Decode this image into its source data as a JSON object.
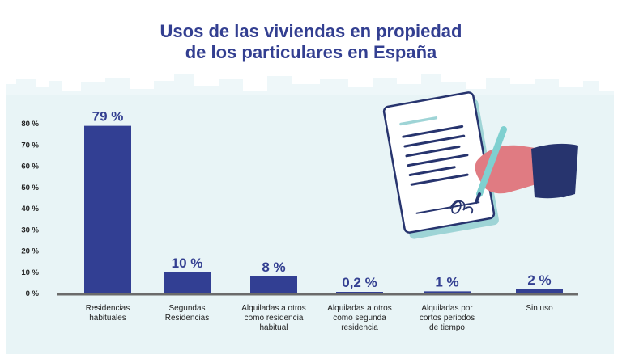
{
  "title_line1": "Usos de las viviendas en propiedad",
  "title_line2": "de los particulares en España",
  "colors": {
    "bar": "#323f93",
    "panel": "#e8f4f6",
    "skyline": "#eef7f9",
    "title": "#333f91",
    "baseline": "#6b6b6b"
  },
  "icons": [
    "document-contract-icon",
    "hand-signing-icon",
    "pen-icon"
  ],
  "chart_data": {
    "type": "bar",
    "title": "Usos de las viviendas en propiedad de los particulares en España",
    "ylim": [
      0,
      80
    ],
    "yticks": [
      0,
      10,
      20,
      30,
      40,
      50,
      60,
      70,
      80
    ],
    "ytick_labels": [
      "0 %",
      "10 %",
      "20 %",
      "30 %",
      "40 %",
      "50 %",
      "60 %",
      "70 %",
      "80 %"
    ],
    "categories": [
      [
        "Residencias",
        "habituales"
      ],
      [
        "Segundas",
        "Residencias"
      ],
      [
        "Alquiladas a otros",
        "como residencia",
        "habitual"
      ],
      [
        "Alquiladas a otros",
        "como segunda",
        "residencia"
      ],
      [
        "Alquiladas por",
        "cortos periodos",
        "de tiempo"
      ],
      [
        "Sin uso"
      ]
    ],
    "values": [
      79,
      10,
      8,
      0.2,
      1,
      2
    ],
    "value_labels": [
      "79 %",
      "10 %",
      "8 %",
      "0,2 %",
      "1 %",
      "2 %"
    ],
    "grid": false,
    "legend": "none"
  }
}
